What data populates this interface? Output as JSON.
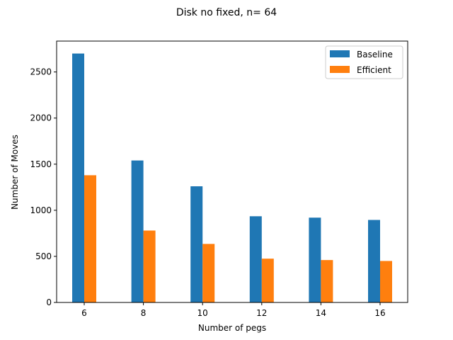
{
  "chart_data": {
    "type": "bar",
    "title": "Disk no fixed, n= 64",
    "xlabel": "Number of pegs",
    "ylabel": "Number of Moves",
    "categories": [
      "6",
      "8",
      "10",
      "12",
      "14",
      "16"
    ],
    "series": [
      {
        "name": "Baseline",
        "color": "#1f77b4",
        "values": [
          2700,
          1540,
          1260,
          935,
          920,
          895
        ]
      },
      {
        "name": "Efficient",
        "color": "#ff7f0e",
        "values": [
          1380,
          780,
          635,
          475,
          460,
          450
        ]
      }
    ],
    "ylim": [
      0,
      2835
    ],
    "yticks": [
      0,
      500,
      1000,
      1500,
      2000,
      2500
    ],
    "grid": false,
    "legend_position": "top-right"
  }
}
